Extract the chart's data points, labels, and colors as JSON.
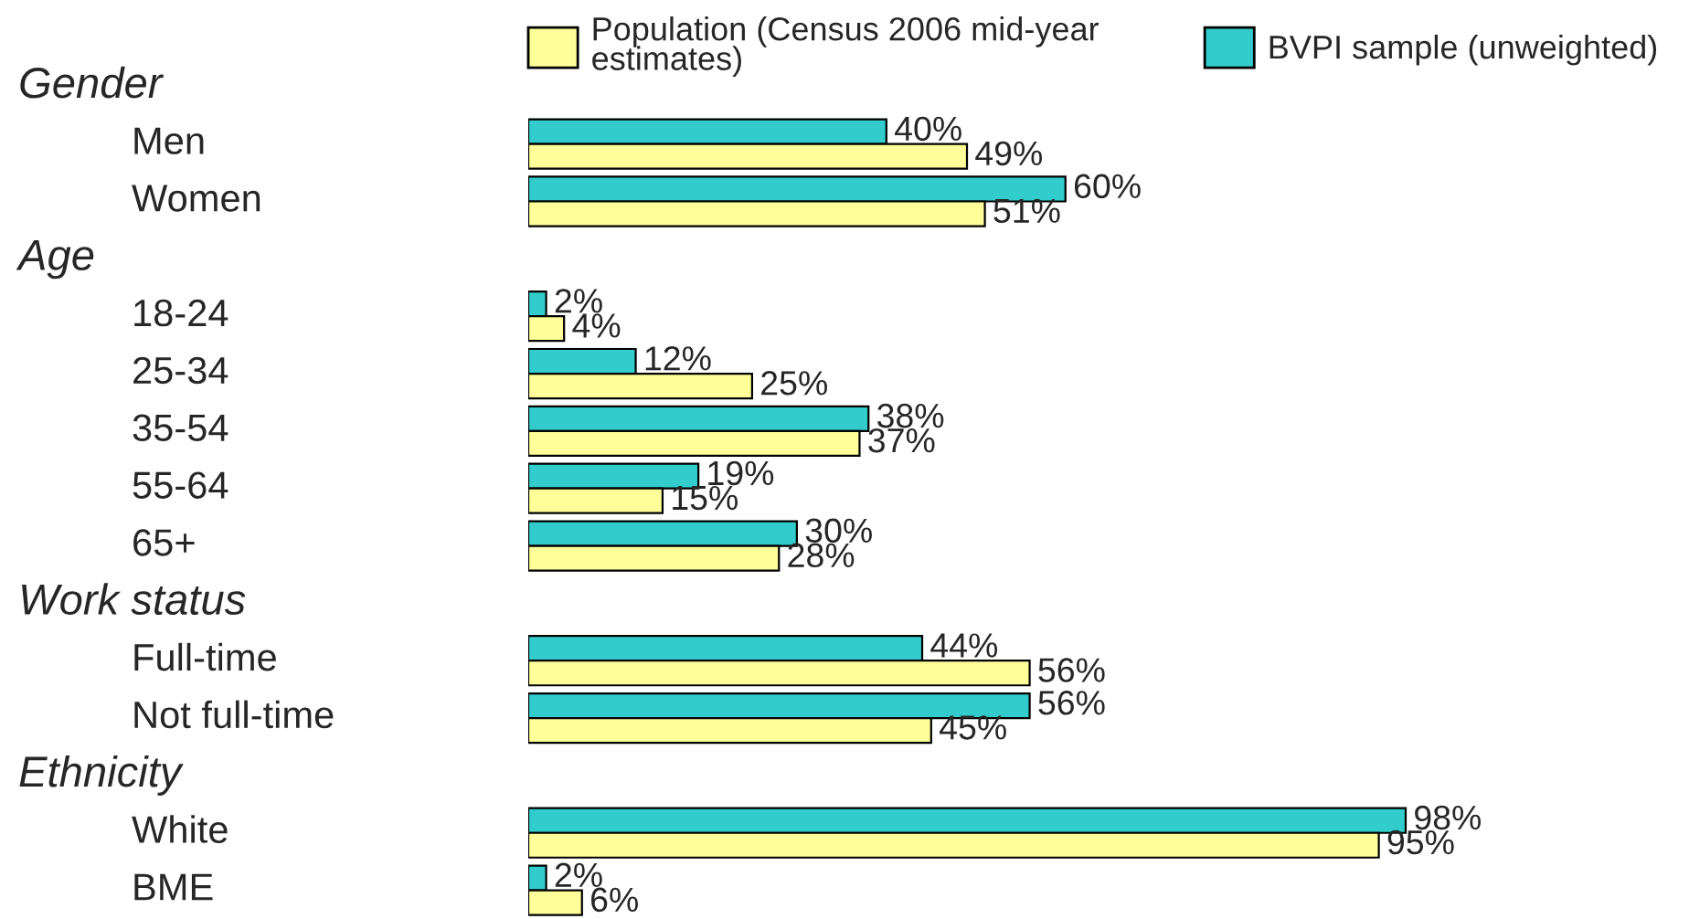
{
  "chart_data": [
    {
      "type": "bar",
      "orientation": "horizontal",
      "title": "Gender",
      "categories": [
        "Men",
        "Women"
      ],
      "series": [
        {
          "name": "BVPI sample (unweighted)",
          "color": "#33cccc",
          "values": [
            40,
            60
          ],
          "value_labels": [
            "40%",
            "60%"
          ]
        },
        {
          "name": "Population (Census 2006 mid-year\nestimates)",
          "color": "#ffff99",
          "values": [
            49,
            51
          ],
          "value_labels": [
            "49%",
            "51%"
          ]
        }
      ],
      "tick_labels": "y",
      "legend": "top"
    },
    {
      "type": "bar",
      "orientation": "horizontal",
      "title": "Age",
      "categories": [
        "18-24",
        "25-34",
        "35-54",
        "55-64",
        "65+"
      ],
      "series": [
        {
          "color": "#33cccc",
          "values": [
            2,
            12,
            38,
            19,
            30
          ],
          "value_labels": [
            "2%",
            "12%",
            "38%",
            "19%",
            "30%"
          ]
        },
        {
          "color": "#ffff99",
          "values": [
            4,
            25,
            37,
            15,
            28
          ],
          "value_labels": [
            "4%",
            "25%",
            "37%",
            "15%",
            "28%"
          ]
        }
      ],
      "tick_labels": "y"
    },
    {
      "type": "bar",
      "orientation": "horizontal",
      "title": "Work status",
      "categories": [
        "Full-time",
        "Not full-time"
      ],
      "series": [
        {
          "color": "#33cccc",
          "values": [
            44,
            56
          ],
          "value_labels": [
            "44%",
            "56%"
          ]
        },
        {
          "color": "#ffff99",
          "values": [
            56,
            45
          ],
          "value_labels": [
            "56%",
            "45%"
          ]
        }
      ],
      "tick_labels": "y"
    },
    {
      "type": "bar",
      "orientation": "horizontal",
      "title": "Ethnicity",
      "categories": [
        "White",
        "BME"
      ],
      "series": [
        {
          "color": "#33cccc",
          "values": [
            98,
            2
          ],
          "value_labels": [
            "98%",
            "2%"
          ]
        },
        {
          "color": "#ffff99",
          "values": [
            95,
            6
          ],
          "value_labels": [
            "95%",
            "6%"
          ]
        }
      ],
      "tick_labels": "y"
    }
  ]
}
